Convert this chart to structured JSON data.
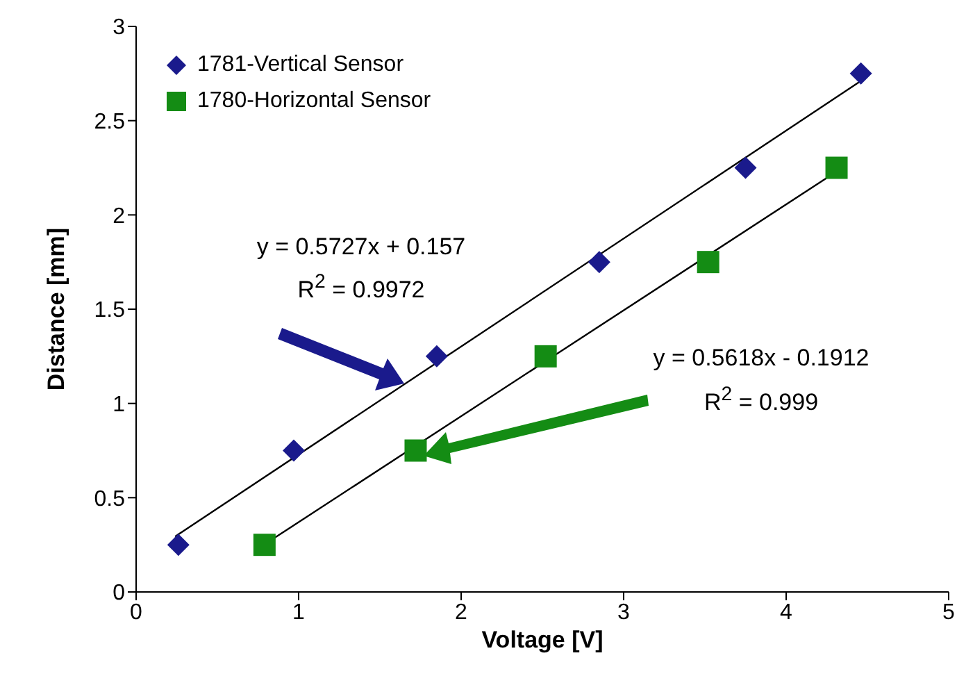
{
  "chart_data": {
    "type": "scatter",
    "xlabel": "Voltage [V]",
    "ylabel": "Distance [mm]",
    "xlim": [
      0,
      5
    ],
    "xticks": [
      0,
      1,
      2,
      3,
      4,
      5
    ],
    "ylim": [
      0,
      3
    ],
    "yticks": [
      0,
      0.5,
      1,
      1.5,
      2,
      2.5,
      3
    ],
    "grid": false,
    "legend": "top left",
    "annotations": [
      "y = 0.5727x + 0.157",
      "R$^{2}$ = 0.9972",
      "y = 0.5618x - 0.1912",
      "R$^{2}$ = 0.999"
    ],
    "series": [
      {
        "name": "1781-Vertical Sensor",
        "color": "#1a1a8c",
        "marker": "diamond",
        "x": [
          0.26,
          0.97,
          1.85,
          2.85,
          3.75,
          4.46
        ],
        "values": [
          0.25,
          0.75,
          1.25,
          1.75,
          2.25,
          2.75
        ]
      },
      {
        "name": "1780-Horizontal Sensor",
        "color": "#148c14",
        "marker": "square",
        "x": [
          0.79,
          1.72,
          2.52,
          3.52,
          4.31
        ],
        "values": [
          0.25,
          0.75,
          1.25,
          1.75,
          2.25
        ]
      },
      {
        "type": "line",
        "color": "#000000",
        "marker": "none",
        "x": [
          0.24,
          4.45
        ],
        "values": [
          0.294,
          2.705
        ]
      },
      {
        "type": "line",
        "color": "#000000",
        "marker": "none",
        "x": [
          0.77,
          4.31
        ],
        "values": [
          0.241,
          2.23
        ]
      }
    ]
  }
}
